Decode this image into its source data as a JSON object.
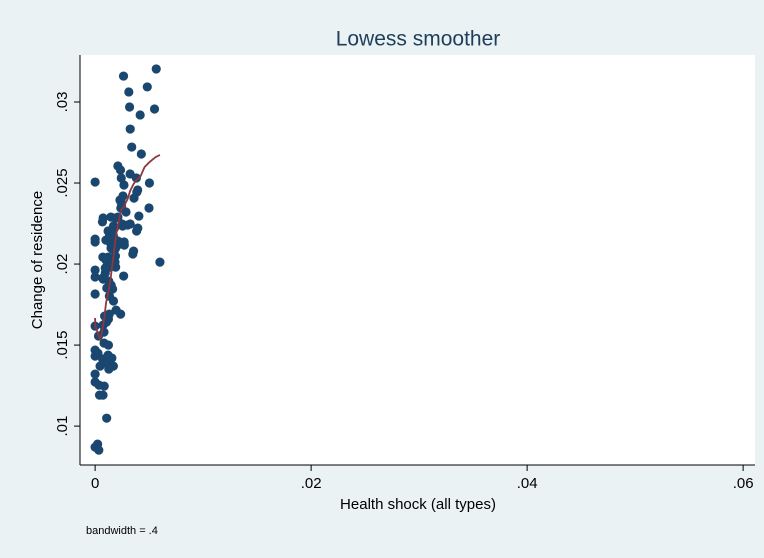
{
  "chart_data": {
    "type": "scatter",
    "title": "Lowess smoother",
    "x_label": "Health shock (all types)",
    "y_label": "Change of residence",
    "note": "bandwidth = .4",
    "xlim": [
      -0.0014,
      0.0611
    ],
    "ylim": [
      0.0076,
      0.0329
    ],
    "xticks": [
      0,
      {
        "value": 0.02,
        "label": ".02"
      },
      {
        "value": 0.04,
        "label": ".04"
      },
      {
        "value": 0.06,
        "label": ".06"
      }
    ],
    "yticks": [
      {
        "value": 0.01,
        "label": ".01"
      },
      {
        "value": 0.015,
        "label": ".015"
      },
      {
        "value": 0.02,
        "label": ".02"
      },
      {
        "value": 0.025,
        "label": ".025"
      },
      {
        "value": 0.03,
        "label": ".03"
      }
    ],
    "grid": false,
    "series": [
      {
        "style": "markers",
        "color": "#1a476f",
        "x": [
          0,
          0,
          0,
          0,
          0,
          0,
          0,
          0,
          0,
          0,
          0,
          0,
          0.00023,
          0.00034,
          0.00026,
          0.00031,
          0.00036,
          0.00041,
          0.00046,
          0.00068,
          0.00074,
          0.00072,
          0.00071,
          0.00075,
          0.00073,
          0.00069,
          0.00073,
          0.00081,
          0.00082,
          0.00083,
          0.00084,
          0.00088,
          0.00094,
          0.00094,
          0.001,
          0.00101,
          0.00103,
          0.00105,
          0.00106,
          0.00107,
          0.00108,
          0.00111,
          0.00116,
          0.0012,
          0.00121,
          0.0012,
          0.00123,
          0.00123,
          0.00126,
          0.00127,
          0.00131,
          0.00132,
          0.00134,
          0.00139,
          0.00142,
          0.00146,
          0.00147,
          0.00148,
          0.00149,
          0.00155,
          0.00159,
          0.0016,
          0.00162,
          0.00169,
          0.0017,
          0.0017,
          0.0017,
          0.00173,
          0.00179,
          0.00184,
          0.00185,
          0.00186,
          0.00188,
          0.0019,
          0.0019,
          0.00194,
          0.00201,
          0.00211,
          0.00212,
          0.00211,
          0.0023,
          0.00235,
          0.00236,
          0.00238,
          0.00238,
          0.0024,
          0.00242,
          0.00245,
          0.0025,
          0.00255,
          0.00258,
          0.00263,
          0.00264,
          0.00267,
          0.00269,
          0.0027,
          0.00286,
          0.00301,
          0.00312,
          0.00319,
          0.00325,
          0.00324,
          0.00325,
          0.00339,
          0.00349,
          0.00356,
          0.0036,
          0.00382,
          0.00384,
          0.00386,
          0.00394,
          0.00395,
          0.00405,
          0.00417,
          0.00428,
          0.00483,
          0.00499,
          0.00503,
          0.0055,
          0.00566,
          0.006
        ],
        "y": [
          0.02506,
          0.02154,
          0.02136,
          0.01963,
          0.0192,
          0.01815,
          0.01617,
          0.01469,
          0.01432,
          0.01321,
          0.01272,
          0.0087,
          0.00889,
          0.00852,
          0.0145,
          0.01556,
          0.01253,
          0.01191,
          0.0137,
          0.0226,
          0.02284,
          0.02043,
          0.01914,
          0.01907,
          0.01623,
          0.01414,
          0.01191,
          0.01407,
          0.0158,
          0.01512,
          0.01247,
          0.01679,
          0.01975,
          0.01944,
          0.02148,
          0.02025,
          0.01981,
          0.01642,
          0.01389,
          0.01049,
          0.01852,
          0.01654,
          0.01679,
          0.02204,
          0.02043,
          0.01438,
          0.015,
          0.0166,
          0.01895,
          0.01352,
          0.01691,
          0.01802,
          0.02179,
          0.01981,
          0.0213,
          0.0229,
          0.02099,
          0.0187,
          0.01858,
          0.0142,
          0.02093,
          0.02019,
          0.01846,
          0.0137,
          0.02235,
          0.02173,
          0.01772,
          0.02,
          0.02222,
          0.02012,
          0.02136,
          0.02093,
          0.02049,
          0.02284,
          0.01981,
          0.01716,
          0.02111,
          0.02605,
          0.02142,
          0.0229,
          0.02395,
          0.0258,
          0.01691,
          0.02346,
          0.02395,
          0.02383,
          0.02531,
          0.02358,
          0.02247,
          0.02235,
          0.0242,
          0.0316,
          0.01926,
          0.02488,
          0.02136,
          0.02117,
          0.02321,
          0.02241,
          0.03062,
          0.02969,
          0.02833,
          0.02556,
          0.02247,
          0.02722,
          0.02062,
          0.0208,
          0.02407,
          0.02531,
          0.02204,
          0.02444,
          0.02457,
          0.02222,
          0.02296,
          0.0292,
          0.02679,
          0.03093,
          0.02346,
          0.025,
          0.02957,
          0.03204,
          0.02012
        ]
      },
      {
        "style": "line",
        "color": "#90353b",
        "x": [
          0,
          1e-05,
          0.00014,
          0.00032,
          0.00046,
          0.0006,
          0.00074,
          0.00088,
          0.00102,
          0.00116,
          0.0013,
          0.00144,
          0.00157,
          0.00171,
          0.00185,
          0.00199,
          0.00213,
          0.00227,
          0.00241,
          0.00255,
          0.00269,
          0.00282,
          0.00301,
          0.00324,
          0.00356,
          0.00384,
          0.00421,
          0.00458,
          0.00505,
          0.0056,
          0.006
        ],
        "y": [
          0.01667,
          0.01623,
          0.01593,
          0.01562,
          0.01537,
          0.01568,
          0.01623,
          0.01685,
          0.01765,
          0.01802,
          0.01858,
          0.01914,
          0.01981,
          0.02056,
          0.0213,
          0.02198,
          0.02241,
          0.02296,
          0.02333,
          0.02346,
          0.02352,
          0.02377,
          0.02401,
          0.02451,
          0.02494,
          0.02519,
          0.02543,
          0.02599,
          0.0263,
          0.0266,
          0.02673
        ]
      }
    ]
  }
}
